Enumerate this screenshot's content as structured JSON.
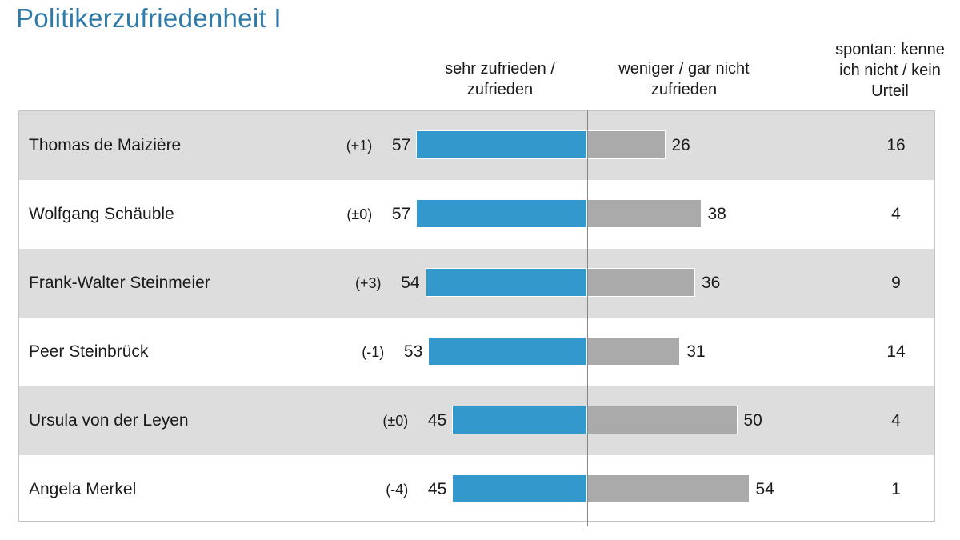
{
  "title": "Politikerzufriedenheit I",
  "columns": {
    "positive": [
      "sehr zufrieden /",
      "zufrieden"
    ],
    "negative": [
      "weniger / gar nicht",
      "zufrieden"
    ],
    "unknown": [
      "spontan: kenne",
      "ich nicht / kein",
      "Urteil"
    ]
  },
  "colors": {
    "positive": "#3399cc",
    "negative": "#aaaaaa",
    "title": "#2e7aa8",
    "row_shade": "#dddddd"
  },
  "chart_data": {
    "type": "bar",
    "orientation": "horizontal-diverging",
    "title": "Politikerzufriedenheit I",
    "categories": [
      "Thomas de Maizière",
      "Wolfgang Schäuble",
      "Frank-Walter Steinmeier",
      "Peer Steinbrück",
      "Ursula von der Leyen",
      "Angela Merkel"
    ],
    "series": [
      {
        "name": "sehr zufrieden / zufrieden",
        "values": [
          57,
          57,
          54,
          53,
          45,
          45
        ],
        "changes": [
          "(+1)",
          "(±0)",
          "(+3)",
          "(-1)",
          "(±0)",
          "(-4)"
        ]
      },
      {
        "name": "weniger / gar nicht zufrieden",
        "values": [
          26,
          38,
          36,
          31,
          50,
          54
        ]
      },
      {
        "name": "spontan: kenne ich nicht / kein Urteil",
        "values": [
          16,
          4,
          9,
          14,
          4,
          1
        ]
      }
    ]
  }
}
